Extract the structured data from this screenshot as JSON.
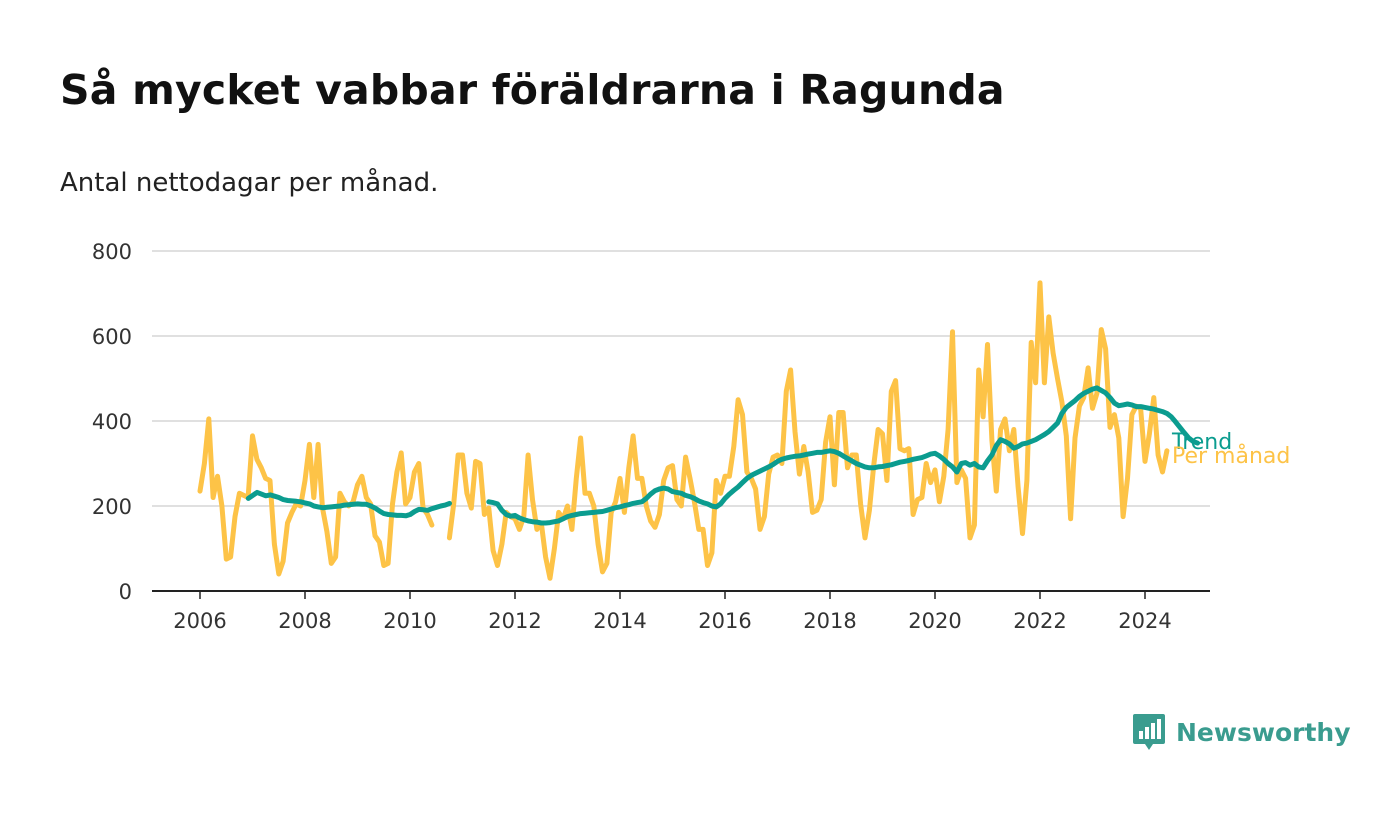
{
  "header": {
    "title": "Så mycket vabbar föräldrarna i Ragunda",
    "subtitle": "Antal nettodagar per månad."
  },
  "brand": {
    "name": "Newsworthy",
    "icon": "newsworthy-logo-icon",
    "color": "#3a9c8f"
  },
  "chart_data": {
    "type": "line",
    "title": "Så mycket vabbar föräldrarna i Ragunda",
    "subtitle": "Antal nettodagar per månad.",
    "xlabel": "",
    "ylabel": "",
    "xlim": [
      2005.8,
      2025.2
    ],
    "ylim": [
      0,
      800
    ],
    "x_ticks": [
      2006,
      2008,
      2010,
      2012,
      2014,
      2016,
      2018,
      2020,
      2022,
      2024
    ],
    "x_tick_labels": [
      "2006",
      "2008",
      "2010",
      "2012",
      "2014",
      "2016",
      "2018",
      "2020",
      "2022",
      "2024"
    ],
    "y_ticks": [
      0,
      200,
      400,
      600,
      800
    ],
    "y_tick_labels": [
      "0",
      "200",
      "400",
      "600",
      "800"
    ],
    "grid": "horizontal",
    "series": [
      {
        "name": "Per månad",
        "color": "#fdc347",
        "segments": [
          {
            "start": 2006.0,
            "values": [
              235,
              300,
              405,
              220,
              270,
              200,
              75,
              80,
              175,
              230,
              225,
              220,
              365,
              310,
              290,
              265,
              260,
              110,
              40,
              70,
              160,
              185,
              205,
              200,
              260,
              345,
              220,
              345,
              195,
              140,
              65,
              80,
              230,
              210,
              200,
              210,
              250,
              270,
              220,
              205,
              130,
              115,
              60,
              65,
              205,
              280,
              325,
              205,
              220,
              280,
              300,
              195,
              180,
              155
            ]
          },
          {
            "start": 2010.75,
            "values": [
              125,
              205,
              320,
              320,
              230,
              195,
              305,
              300,
              180,
              195,
              95,
              60,
              110,
              185,
              175,
              170,
              145,
              175,
              320,
              215,
              145,
              160,
              80,
              30,
              100,
              185,
              170,
              200,
              145,
              265,
              360,
              230,
              230,
              200,
              110,
              45,
              65,
              185,
              210,
              265,
              185,
              290,
              365,
              265,
              265,
              200,
              165,
              150,
              180,
              260,
              290,
              295,
              215,
              200,
              315,
              265,
              210,
              145,
              145,
              60,
              90,
              260,
              230,
              270,
              270,
              340,
              450,
              415,
              280,
              265,
              240,
              145,
              175,
              275,
              315,
              320,
              300,
              470,
              520,
              375,
              275,
              340,
              280,
              185,
              190,
              215,
              350,
              410,
              250,
              420,
              420,
              290,
              320,
              320,
              205,
              125,
              190,
              295,
              380,
              370,
              260,
              470,
              495,
              335,
              330,
              335,
              180,
              215,
              220,
              300,
              255,
              285,
              210,
              270,
              380,
              610,
              255,
              285,
              265,
              125,
              155,
              520,
              410,
              580,
              355,
              235,
              380,
              405,
              330,
              380,
              245,
              135,
              260,
              585,
              490,
              725,
              490,
              645,
              560,
              500,
              445,
              365,
              170,
              360,
              435,
              455,
              525,
              430,
              465,
              615,
              570,
              385,
              415,
              360,
              175,
              265,
              415,
              435,
              430,
              305,
              370,
              455,
              320,
              280,
              330
            ]
          }
        ]
      },
      {
        "name": "Trend",
        "color": "#0b9c8f",
        "segments": [
          {
            "start": 2006.92,
            "values": [
              218,
              225,
              232,
              228,
              224,
              226,
              223,
              220,
              215,
              213,
              212,
              211,
              210,
              207,
              205,
              200,
              198,
              196,
              197,
              198,
              199,
              200,
              202,
              203,
              204,
              205,
              204,
              204,
              200,
              195,
              188,
              182,
              180,
              179,
              178,
              178,
              177,
              180,
              187,
              192,
              191,
              190,
              194,
              197,
              200,
              202,
              206
            ]
          },
          {
            "start": 2011.5,
            "values": [
              210,
              208,
              205,
              190,
              180,
              176,
              178,
              172,
              168,
              165,
              163,
              162,
              160,
              160,
              161,
              163,
              165,
              170,
              175,
              178,
              180,
              182,
              183,
              184,
              185,
              186,
              187,
              190,
              193,
              196,
              198,
              201,
              203,
              206,
              208,
              210,
              218,
              228,
              236,
              240,
              242,
              240,
              234,
              232,
              230,
              225,
              222,
              218,
              212,
              208,
              205,
              200,
              198,
              205,
              218,
              228,
              237,
              245,
              255,
              265,
              272,
              277,
              282,
              287,
              292,
              298,
              305,
              310,
              313,
              315,
              317,
              318,
              320,
              322,
              324,
              326,
              326,
              328,
              330,
              328,
              324,
              318,
              312,
              306,
              300,
              296,
              292,
              290,
              290,
              292,
              293,
              295,
              297,
              300,
              303,
              305,
              307,
              310,
              312,
              314,
              318,
              322,
              324,
              318,
              310,
              300,
              292,
              280,
              300,
              302,
              296,
              300,
              292,
              290,
              306,
              320,
              342,
              356,
              352,
              346,
              336,
              340,
              346,
              348,
              352,
              356,
              362,
              368,
              375,
              385,
              395,
              418,
              432,
              440,
              448,
              458,
              465,
              470,
              475,
              478,
              472,
              466,
              455,
              442,
              436,
              438,
              440,
              438,
              434,
              434,
              432,
              430,
              428,
              425,
              422,
              418,
              410,
              398,
              385,
              372,
              360,
              352,
              348
            ]
          }
        ],
        "label_note": "Trend"
      }
    ]
  }
}
